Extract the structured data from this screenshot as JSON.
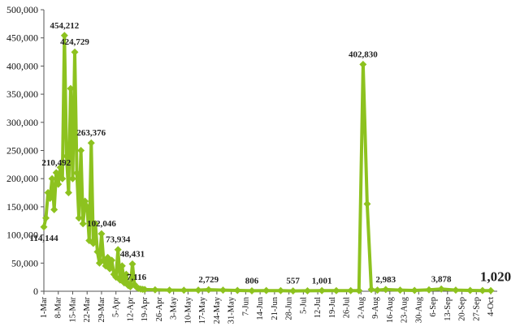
{
  "chart_data": {
    "type": "line",
    "title": "",
    "xlabel": "",
    "ylabel": "",
    "ylim": [
      0,
      500000
    ],
    "yticks": [
      "0",
      "50,000",
      "100,000",
      "150,000",
      "200,000",
      "250,000",
      "300,000",
      "350,000",
      "400,000",
      "450,000",
      "500,000"
    ],
    "ytick_values": [
      0,
      50000,
      100000,
      150000,
      200000,
      250000,
      300000,
      350000,
      400000,
      450000,
      500000
    ],
    "grid": false,
    "legend": "none",
    "colors": {
      "line": "#8dc21f",
      "marker": "#8dc21f",
      "axis": "#555555"
    },
    "xticks": [
      "1-Mar",
      "8-Mar",
      "15-Mar",
      "22-Mar",
      "29-Mar",
      "5-Apr",
      "12-Apr",
      "19-Apr",
      "26-Apr",
      "3-May",
      "10-May",
      "17-May",
      "24-May",
      "31-May",
      "7-Jun",
      "14-Jun",
      "21-Jun",
      "28-Jun",
      "5-Jul",
      "12-Jul",
      "19-Jul",
      "26-Jul",
      "2-Aug",
      "9-Aug",
      "16-Aug",
      "23-Aug",
      "30-Aug",
      "6-Sep",
      "13-Sep",
      "20-Sep",
      "27-Sep",
      "4-Oct"
    ],
    "x_start": "1-Mar",
    "x_end": "4-Oct",
    "series": [
      {
        "points": [
          [
            "1-Mar",
            114144
          ],
          [
            "2-Mar",
            130000
          ],
          [
            "3-Mar",
            175000
          ],
          [
            "4-Mar",
            165000
          ],
          [
            "5-Mar",
            200000
          ],
          [
            "6-Mar",
            145000
          ],
          [
            "7-Mar",
            210492
          ],
          [
            "8-Mar",
            190000
          ],
          [
            "9-Mar",
            220000
          ],
          [
            "10-Mar",
            200000
          ],
          [
            "11-Mar",
            454212
          ],
          [
            "12-Mar",
            240000
          ],
          [
            "13-Mar",
            175000
          ],
          [
            "14-Mar",
            360000
          ],
          [
            "15-Mar",
            200000
          ],
          [
            "16-Mar",
            424729
          ],
          [
            "17-Mar",
            210000
          ],
          [
            "18-Mar",
            130000
          ],
          [
            "19-Mar",
            250000
          ],
          [
            "20-Mar",
            120000
          ],
          [
            "21-Mar",
            160000
          ],
          [
            "22-Mar",
            150000
          ],
          [
            "23-Mar",
            90000
          ],
          [
            "24-Mar",
            263376
          ],
          [
            "25-Mar",
            85000
          ],
          [
            "26-Mar",
            120000
          ],
          [
            "27-Mar",
            70000
          ],
          [
            "28-Mar",
            50000
          ],
          [
            "29-Mar",
            102046
          ],
          [
            "30-Mar",
            55000
          ],
          [
            "31-Mar",
            45000
          ],
          [
            "1-Apr",
            60000
          ],
          [
            "2-Apr",
            40000
          ],
          [
            "3-Apr",
            55000
          ],
          [
            "4-Apr",
            30000
          ],
          [
            "5-Apr",
            25000
          ],
          [
            "6-Apr",
            73934
          ],
          [
            "7-Apr",
            20000
          ],
          [
            "8-Apr",
            45000
          ],
          [
            "9-Apr",
            15000
          ],
          [
            "10-Apr",
            30000
          ],
          [
            "11-Apr",
            10000
          ],
          [
            "12-Apr",
            8000
          ],
          [
            "13-Apr",
            48431
          ],
          [
            "14-Apr",
            12000
          ],
          [
            "15-Apr",
            7116
          ],
          [
            "16-Apr",
            5000
          ],
          [
            "17-Apr",
            4000
          ],
          [
            "18-Apr",
            3500
          ],
          [
            "19-Apr",
            3000
          ],
          [
            "24-Apr",
            2500
          ],
          [
            "1-May",
            2000
          ],
          [
            "8-May",
            1800
          ],
          [
            "15-May",
            2000
          ],
          [
            "20-May",
            2729
          ],
          [
            "27-May",
            2000
          ],
          [
            "3-Jun",
            1500
          ],
          [
            "10-Jun",
            806
          ],
          [
            "17-Jun",
            1200
          ],
          [
            "24-Jun",
            1000
          ],
          [
            "30-Jun",
            557
          ],
          [
            "7-Jul",
            800
          ],
          [
            "14-Jul",
            1001
          ],
          [
            "21-Jul",
            1000
          ],
          [
            "28-Jul",
            1000
          ],
          [
            "1-Aug",
            1000
          ],
          [
            "3-Aug",
            402830
          ],
          [
            "5-Aug",
            155000
          ],
          [
            "7-Aug",
            3000
          ],
          [
            "10-Aug",
            2000
          ],
          [
            "14-Aug",
            2983
          ],
          [
            "21-Aug",
            2000
          ],
          [
            "28-Aug",
            1500
          ],
          [
            "4-Sep",
            2500
          ],
          [
            "10-Sep",
            3878
          ],
          [
            "17-Sep",
            2000
          ],
          [
            "24-Sep",
            1500
          ],
          [
            "30-Sep",
            1200
          ],
          [
            "4-Oct",
            1020
          ]
        ]
      }
    ],
    "data_labels": [
      {
        "x": "1-Mar",
        "value": 114144,
        "text": "114,144",
        "pos": "below"
      },
      {
        "x": "7-Mar",
        "value": 210492,
        "text": "210,492",
        "pos": "above"
      },
      {
        "x": "11-Mar",
        "value": 454212,
        "text": "454,212",
        "pos": "above"
      },
      {
        "x": "16-Mar",
        "value": 424729,
        "text": "424,729",
        "pos": "above"
      },
      {
        "x": "24-Mar",
        "value": 263376,
        "text": "263,376",
        "pos": "above"
      },
      {
        "x": "29-Mar",
        "value": 102046,
        "text": "102,046",
        "pos": "above"
      },
      {
        "x": "6-Apr",
        "value": 73934,
        "text": "73,934",
        "pos": "above"
      },
      {
        "x": "13-Apr",
        "value": 48431,
        "text": "48,431",
        "pos": "above"
      },
      {
        "x": "15-Apr",
        "value": 7116,
        "text": "7,116",
        "pos": "above"
      },
      {
        "x": "20-May",
        "value": 2729,
        "text": "2,729",
        "pos": "above"
      },
      {
        "x": "10-Jun",
        "value": 806,
        "text": "806",
        "pos": "above"
      },
      {
        "x": "30-Jun",
        "value": 557,
        "text": "557",
        "pos": "above"
      },
      {
        "x": "14-Jul",
        "value": 1001,
        "text": "1,001",
        "pos": "above"
      },
      {
        "x": "3-Aug",
        "value": 402830,
        "text": "402,830",
        "pos": "above"
      },
      {
        "x": "14-Aug",
        "value": 2983,
        "text": "2,983",
        "pos": "above"
      },
      {
        "x": "10-Sep",
        "value": 3878,
        "text": "3,878",
        "pos": "above"
      },
      {
        "x": "4-Oct",
        "value": 1020,
        "text": "1,020",
        "pos": "above",
        "emphasis": true
      }
    ]
  }
}
